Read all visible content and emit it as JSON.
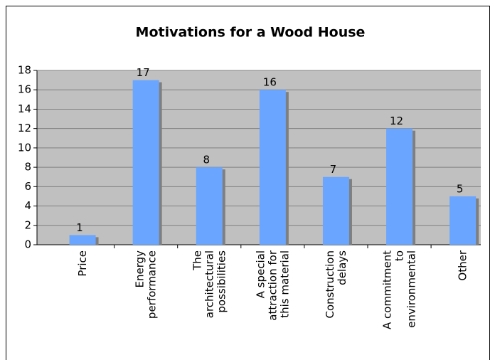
{
  "chart_data": {
    "type": "bar",
    "title": "Motivations for a Wood House",
    "categories": [
      "Price",
      "Energy performance",
      "The architectural possibilities",
      "A special attraction for this material",
      "Construction delays",
      "A commitment to environmental",
      "Other"
    ],
    "values": [
      1,
      17,
      8,
      16,
      7,
      12,
      5
    ],
    "color": "#6aa6ff",
    "ylim": [
      0,
      18
    ],
    "yticks": [
      0,
      2,
      4,
      6,
      8,
      10,
      12,
      14,
      16,
      18
    ],
    "grid": true
  }
}
